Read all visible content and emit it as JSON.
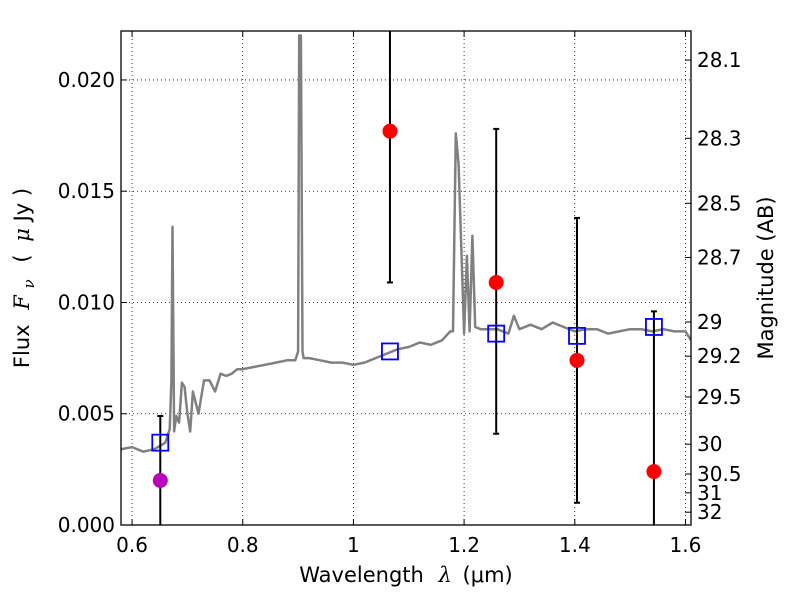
{
  "chart_data": {
    "type": "scatter",
    "title": "",
    "xlabel_prefix": "Wavelength",
    "xlabel_symbol": "λ",
    "xlabel_units": "(μm)",
    "ylabel_prefix": "Flux",
    "ylabel_symbol": "F",
    "ylabel_subscript": "ν",
    "ylabel_units_open": "(",
    "ylabel_units_mu": "μ",
    "ylabel_units_rest": "Jy )",
    "y2label": "Magnitude (AB)",
    "xlim": [
      0.58,
      1.61
    ],
    "ylim": [
      0.0,
      0.0222
    ],
    "grid": true,
    "x_ticks": [
      {
        "value": 0.6,
        "label": "0.6"
      },
      {
        "value": 0.8,
        "label": "0.8"
      },
      {
        "value": 1.0,
        "label": "1"
      },
      {
        "value": 1.2,
        "label": "1.2"
      },
      {
        "value": 1.4,
        "label": "1.4"
      },
      {
        "value": 1.6,
        "label": "1.6"
      }
    ],
    "y_ticks": [
      {
        "value": 0.0,
        "label": "0.000"
      },
      {
        "value": 0.005,
        "label": "0.005"
      },
      {
        "value": 0.01,
        "label": "0.010"
      },
      {
        "value": 0.015,
        "label": "0.015"
      },
      {
        "value": 0.02,
        "label": "0.020"
      }
    ],
    "mag_ticks": [
      {
        "value": 28.1,
        "label": "28.1"
      },
      {
        "value": 28.3,
        "label": "28.3"
      },
      {
        "value": 28.5,
        "label": "28.5"
      },
      {
        "value": 28.7,
        "label": "28.7"
      },
      {
        "value": 29.0,
        "label": "29"
      },
      {
        "value": 29.2,
        "label": "29.2"
      },
      {
        "value": 29.5,
        "label": "29.5"
      },
      {
        "value": 30.0,
        "label": "30"
      },
      {
        "value": 30.5,
        "label": "30.5"
      },
      {
        "value": 31.0,
        "label": "31"
      },
      {
        "value": 32.0,
        "label": "32"
      }
    ],
    "model_spectrum": {
      "color": "#808080",
      "x": [
        0.58,
        0.6,
        0.62,
        0.64,
        0.66,
        0.668,
        0.671,
        0.673,
        0.676,
        0.68,
        0.685,
        0.69,
        0.695,
        0.7,
        0.705,
        0.71,
        0.72,
        0.73,
        0.74,
        0.75,
        0.76,
        0.77,
        0.78,
        0.79,
        0.8,
        0.82,
        0.84,
        0.86,
        0.88,
        0.895,
        0.9,
        0.902,
        0.905,
        0.908,
        0.91,
        0.92,
        0.94,
        0.96,
        0.98,
        1.0,
        1.02,
        1.04,
        1.06,
        1.08,
        1.1,
        1.12,
        1.14,
        1.16,
        1.175,
        1.18,
        1.185,
        1.19,
        1.2,
        1.205,
        1.21,
        1.215,
        1.22,
        1.23,
        1.26,
        1.28,
        1.29,
        1.3,
        1.32,
        1.34,
        1.36,
        1.38,
        1.4,
        1.42,
        1.44,
        1.46,
        1.48,
        1.5,
        1.52,
        1.54,
        1.56,
        1.58,
        1.6,
        1.61
      ],
      "y": [
        0.0034,
        0.0035,
        0.0033,
        0.0034,
        0.0037,
        0.0043,
        0.0065,
        0.0134,
        0.0042,
        0.0049,
        0.0046,
        0.0064,
        0.0062,
        0.005,
        0.0042,
        0.006,
        0.005,
        0.0065,
        0.0065,
        0.006,
        0.0068,
        0.0067,
        0.0068,
        0.007,
        0.007,
        0.0071,
        0.0072,
        0.0073,
        0.0074,
        0.0074,
        0.0078,
        0.022,
        0.022,
        0.0078,
        0.0075,
        0.0075,
        0.0074,
        0.0073,
        0.0073,
        0.0072,
        0.0073,
        0.0075,
        0.0077,
        0.0079,
        0.008,
        0.0082,
        0.0081,
        0.0083,
        0.0087,
        0.0087,
        0.0176,
        0.0162,
        0.0086,
        0.0121,
        0.0087,
        0.013,
        0.0089,
        0.0088,
        0.0088,
        0.0086,
        0.0094,
        0.0088,
        0.009,
        0.0088,
        0.0091,
        0.0089,
        0.0087,
        0.0088,
        0.0088,
        0.0086,
        0.0087,
        0.0088,
        0.0088,
        0.0087,
        0.0088,
        0.0087,
        0.0087,
        0.0083
      ]
    },
    "model_points": {
      "color": "#0000ff",
      "x": [
        0.651,
        1.066,
        1.258,
        1.404,
        1.543
      ],
      "y": [
        0.0037,
        0.0078,
        0.0086,
        0.0085,
        0.0089
      ]
    },
    "observed_points": [
      {
        "x": 1.066,
        "y": 0.0177,
        "yerr_low": 0.0109,
        "yerr_high": 0.0222,
        "color": "#ff0000"
      },
      {
        "x": 1.258,
        "y": 0.0109,
        "yerr_low": 0.0041,
        "yerr_high": 0.0178,
        "color": "#ff0000"
      },
      {
        "x": 1.404,
        "y": 0.0074,
        "yerr_low": 0.001,
        "yerr_high": 0.0138,
        "color": "#ff0000"
      },
      {
        "x": 1.543,
        "y": 0.0024,
        "yerr_low": 0.0,
        "yerr_high": 0.0096,
        "color": "#ff0000"
      },
      {
        "x": 0.651,
        "y": 0.002,
        "yerr_low": 0.0,
        "yerr_high": 0.0049,
        "color": "#bb00bb"
      }
    ]
  }
}
